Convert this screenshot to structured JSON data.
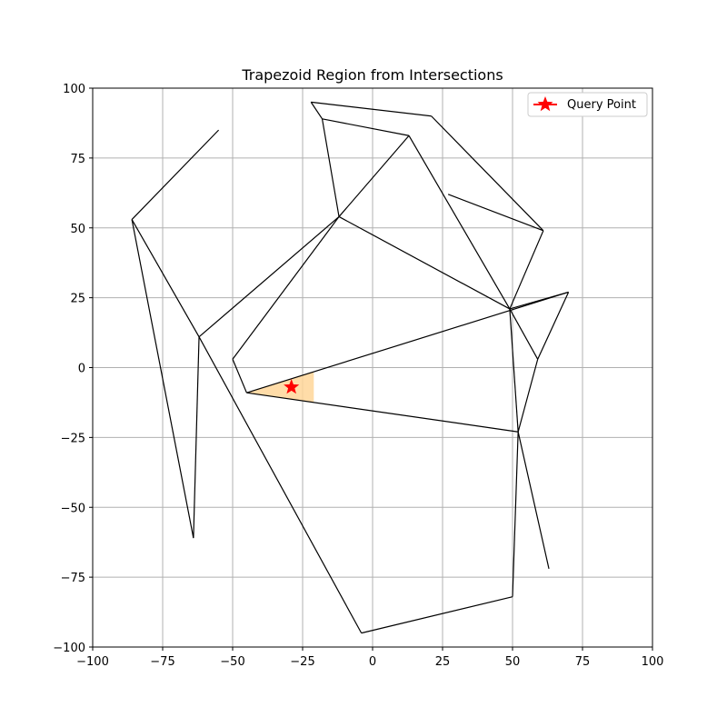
{
  "chart_data": {
    "type": "line",
    "title": "Trapezoid Region from Intersections",
    "xlabel": "",
    "ylabel": "",
    "xlim": [
      -100,
      100
    ],
    "ylim": [
      -100,
      100
    ],
    "xticks": [
      -100,
      -75,
      -50,
      -25,
      0,
      25,
      50,
      75,
      100
    ],
    "yticks": [
      -100,
      -75,
      -50,
      -25,
      0,
      25,
      50,
      75,
      100
    ],
    "xtick_labels": [
      "−100",
      "−75",
      "−50",
      "−25",
      "0",
      "25",
      "50",
      "75",
      "100"
    ],
    "ytick_labels": [
      "−100",
      "−75",
      "−50",
      "−25",
      "0",
      "25",
      "50",
      "75",
      "100"
    ],
    "grid": true,
    "legend_position": "top-right",
    "colors": {
      "segments": "#000000",
      "region": "#ffd699",
      "query_point": "#ff0000",
      "grid": "#b0b0b0"
    },
    "segments": [
      [
        [
          -86,
          53
        ],
        [
          -55,
          85
        ]
      ],
      [
        [
          -86,
          53
        ],
        [
          -62,
          11
        ]
      ],
      [
        [
          -86,
          53
        ],
        [
          -64,
          -61
        ]
      ],
      [
        [
          -62,
          11
        ],
        [
          -64,
          -61
        ]
      ],
      [
        [
          -62,
          11
        ],
        [
          -12,
          54
        ]
      ],
      [
        [
          -62,
          11
        ],
        [
          -4,
          -95
        ]
      ],
      [
        [
          -45,
          -9
        ],
        [
          -50,
          3
        ]
      ],
      [
        [
          -50,
          3
        ],
        [
          -12,
          54
        ]
      ],
      [
        [
          -12,
          54
        ],
        [
          -18,
          89
        ]
      ],
      [
        [
          -18,
          89
        ],
        [
          13,
          83
        ]
      ],
      [
        [
          -12,
          54
        ],
        [
          13,
          83
        ]
      ],
      [
        [
          -22,
          95
        ],
        [
          -18,
          89
        ]
      ],
      [
        [
          -22,
          95
        ],
        [
          21,
          90
        ]
      ],
      [
        [
          21,
          90
        ],
        [
          61,
          49
        ]
      ],
      [
        [
          27,
          62
        ],
        [
          61,
          49
        ]
      ],
      [
        [
          13,
          83
        ],
        [
          49,
          21
        ]
      ],
      [
        [
          -12,
          54
        ],
        [
          49,
          21
        ]
      ],
      [
        [
          61,
          49
        ],
        [
          49,
          21
        ]
      ],
      [
        [
          -45,
          -9
        ],
        [
          70,
          27
        ]
      ],
      [
        [
          49,
          21
        ],
        [
          70,
          27
        ]
      ],
      [
        [
          70,
          27
        ],
        [
          59,
          3
        ]
      ],
      [
        [
          49,
          21
        ],
        [
          59,
          3
        ]
      ],
      [
        [
          -45,
          -9
        ],
        [
          52,
          -23
        ]
      ],
      [
        [
          49,
          21
        ],
        [
          52,
          -23
        ]
      ],
      [
        [
          59,
          3
        ],
        [
          52,
          -23
        ]
      ],
      [
        [
          52,
          -23
        ],
        [
          63,
          -72
        ]
      ],
      [
        [
          52,
          -23
        ],
        [
          50,
          -82
        ]
      ],
      [
        [
          -4,
          -95
        ],
        [
          50,
          -82
        ]
      ]
    ],
    "region": [
      [
        -45,
        -9
      ],
      [
        -21,
        -1.5
      ],
      [
        -21,
        -12.5
      ]
    ],
    "query_point": {
      "x": -29,
      "y": -7,
      "label": "Query Point"
    }
  }
}
